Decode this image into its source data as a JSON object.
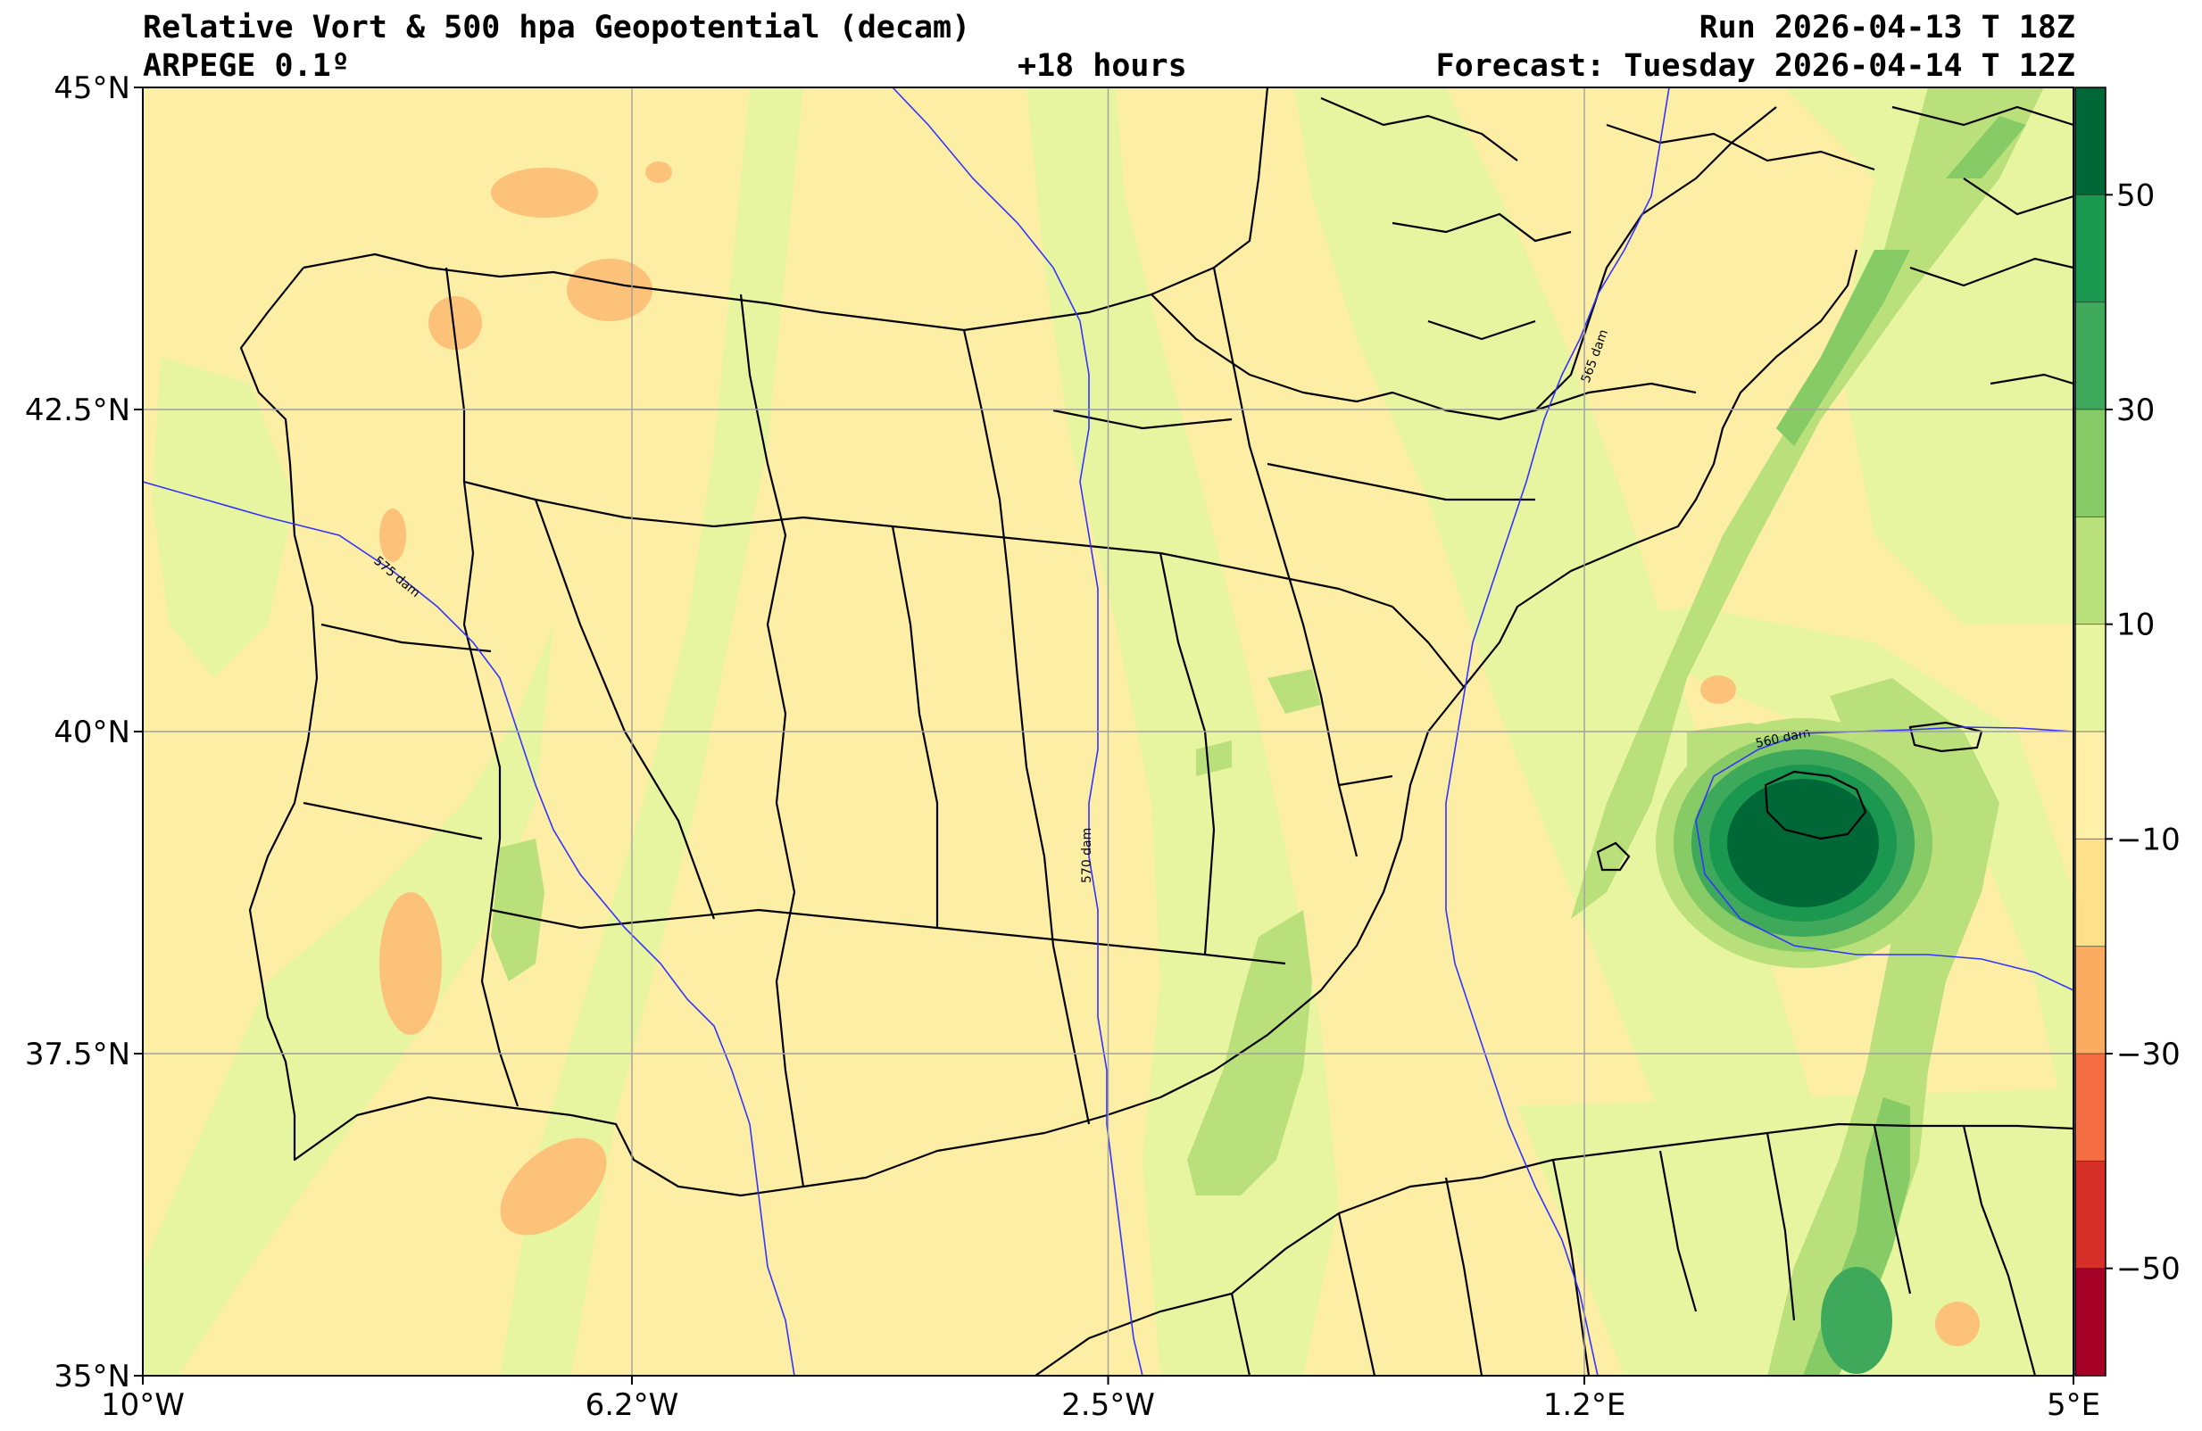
{
  "header": {
    "title_left_1": "Relative Vort & 500 hpa Geopotential (decam)",
    "title_left_2": "ARPEGE 0.1º",
    "title_center": "+18 hours",
    "title_right_1": "Run 2026-04-13 T 18Z",
    "title_right_2": "Forecast: Tuesday 2026-04-14 T 12Z"
  },
  "map": {
    "extent": {
      "lon_min": -10,
      "lon_max": 5,
      "lat_min": 35,
      "lat_max": 45
    },
    "lon_ticks": [
      {
        "value": -10,
        "label": "10°W"
      },
      {
        "value": -6.2,
        "label": "6.2°W"
      },
      {
        "value": -2.5,
        "label": "2.5°W"
      },
      {
        "value": 1.2,
        "label": "1.2°E"
      },
      {
        "value": 5,
        "label": "5°E"
      }
    ],
    "lat_ticks": [
      {
        "value": 45,
        "label": "45°N"
      },
      {
        "value": 42.5,
        "label": "42.5°N"
      },
      {
        "value": 40,
        "label": "40°N"
      },
      {
        "value": 37.5,
        "label": "37.5°N"
      },
      {
        "value": 35,
        "label": "35°N"
      }
    ],
    "geopotential_contours": [
      {
        "label": "575 dam",
        "value": 575
      },
      {
        "label": "570 dam",
        "value": 570
      },
      {
        "label": "565 dam",
        "value": 565
      },
      {
        "label": "560 dam",
        "value": 560
      }
    ]
  },
  "colorbar": {
    "levels": [
      -60,
      -50,
      -40,
      -30,
      -20,
      -10,
      0,
      10,
      20,
      30,
      40,
      50,
      60
    ],
    "colors": [
      "#a50026",
      "#d62f27",
      "#f46d43",
      "#fcac60",
      "#fee08b",
      "#fff0a8",
      "#e8f5a0",
      "#b9e07a",
      "#86cb66",
      "#3ea95b",
      "#1a9850",
      "#006837"
    ],
    "tick_labels": [
      {
        "value": 50,
        "label": "50"
      },
      {
        "value": 30,
        "label": "30"
      },
      {
        "value": 10,
        "label": "10"
      },
      {
        "value": -10,
        "label": "−10"
      },
      {
        "value": -30,
        "label": "−30"
      },
      {
        "value": -50,
        "label": "−50"
      }
    ]
  },
  "colors": {
    "neutral_fill": "#fdeea6",
    "light_green": "#e8f5a0",
    "mid_green": "#b9e07a",
    "green": "#86cb66",
    "dark_green": "#1a9850",
    "darkest_green": "#006837",
    "light_orange": "#fcc27a",
    "geopotential_line": "#3333ff",
    "border_line": "#000000",
    "grid_line": "#a0a0a0"
  }
}
